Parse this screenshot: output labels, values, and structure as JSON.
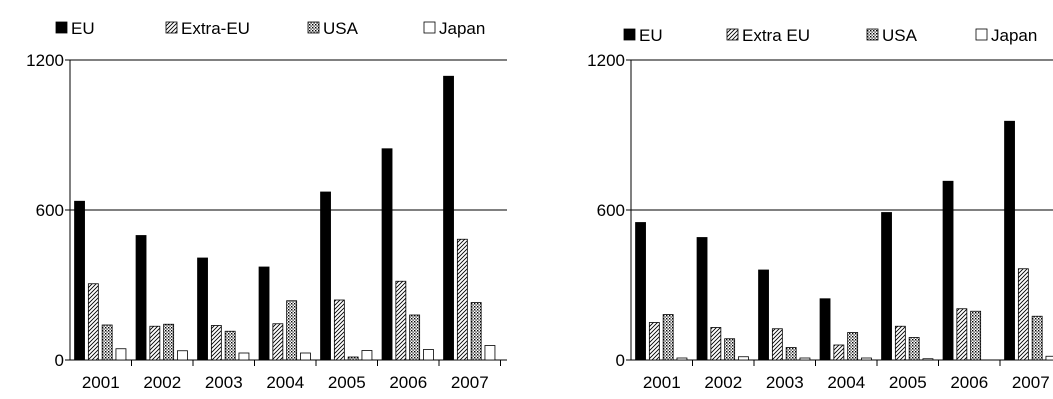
{
  "chart_data": [
    {
      "type": "bar",
      "categories": [
        "2001",
        "2002",
        "2003",
        "2004",
        "2005",
        "2006",
        "2007"
      ],
      "series": [
        {
          "name": "EU",
          "values": [
            635,
            498,
            408,
            372,
            672,
            845,
            1135
          ]
        },
        {
          "name": "Extra-EU",
          "values": [
            305,
            135,
            138,
            145,
            240,
            315,
            483
          ]
        },
        {
          "name": "USA",
          "values": [
            140,
            143,
            115,
            237,
            12,
            180,
            230
          ]
        },
        {
          "name": "Japan",
          "values": [
            45,
            37,
            28,
            28,
            38,
            42,
            58
          ]
        }
      ],
      "yticks": [
        "0",
        "600",
        "1200"
      ],
      "ylim": [
        0,
        1200
      ],
      "grid": true,
      "legend": "top",
      "title": "",
      "xlabel": "",
      "ylabel": ""
    },
    {
      "type": "bar",
      "categories": [
        "2001",
        "2002",
        "2003",
        "2004",
        "2005",
        "2006",
        "2007"
      ],
      "series": [
        {
          "name": "EU",
          "values": [
            550,
            490,
            360,
            245,
            590,
            715,
            955
          ]
        },
        {
          "name": "Extra EU",
          "values": [
            150,
            130,
            125,
            60,
            135,
            205,
            365
          ]
        },
        {
          "name": "USA",
          "values": [
            182,
            85,
            50,
            110,
            90,
            195,
            175
          ]
        },
        {
          "name": "Japan",
          "values": [
            8,
            13,
            8,
            8,
            5,
            0,
            15
          ]
        }
      ],
      "yticks": [
        "0",
        "600",
        "1200"
      ],
      "ylim": [
        0,
        1200
      ],
      "grid": true,
      "legend": "top",
      "title": "",
      "xlabel": "",
      "ylabel": ""
    }
  ],
  "colors": {
    "eu": "#000000",
    "axis": "#000000",
    "background": "#ffffff"
  },
  "patterns": [
    "solid",
    "diagonal-hatch",
    "dots",
    "hollow"
  ]
}
